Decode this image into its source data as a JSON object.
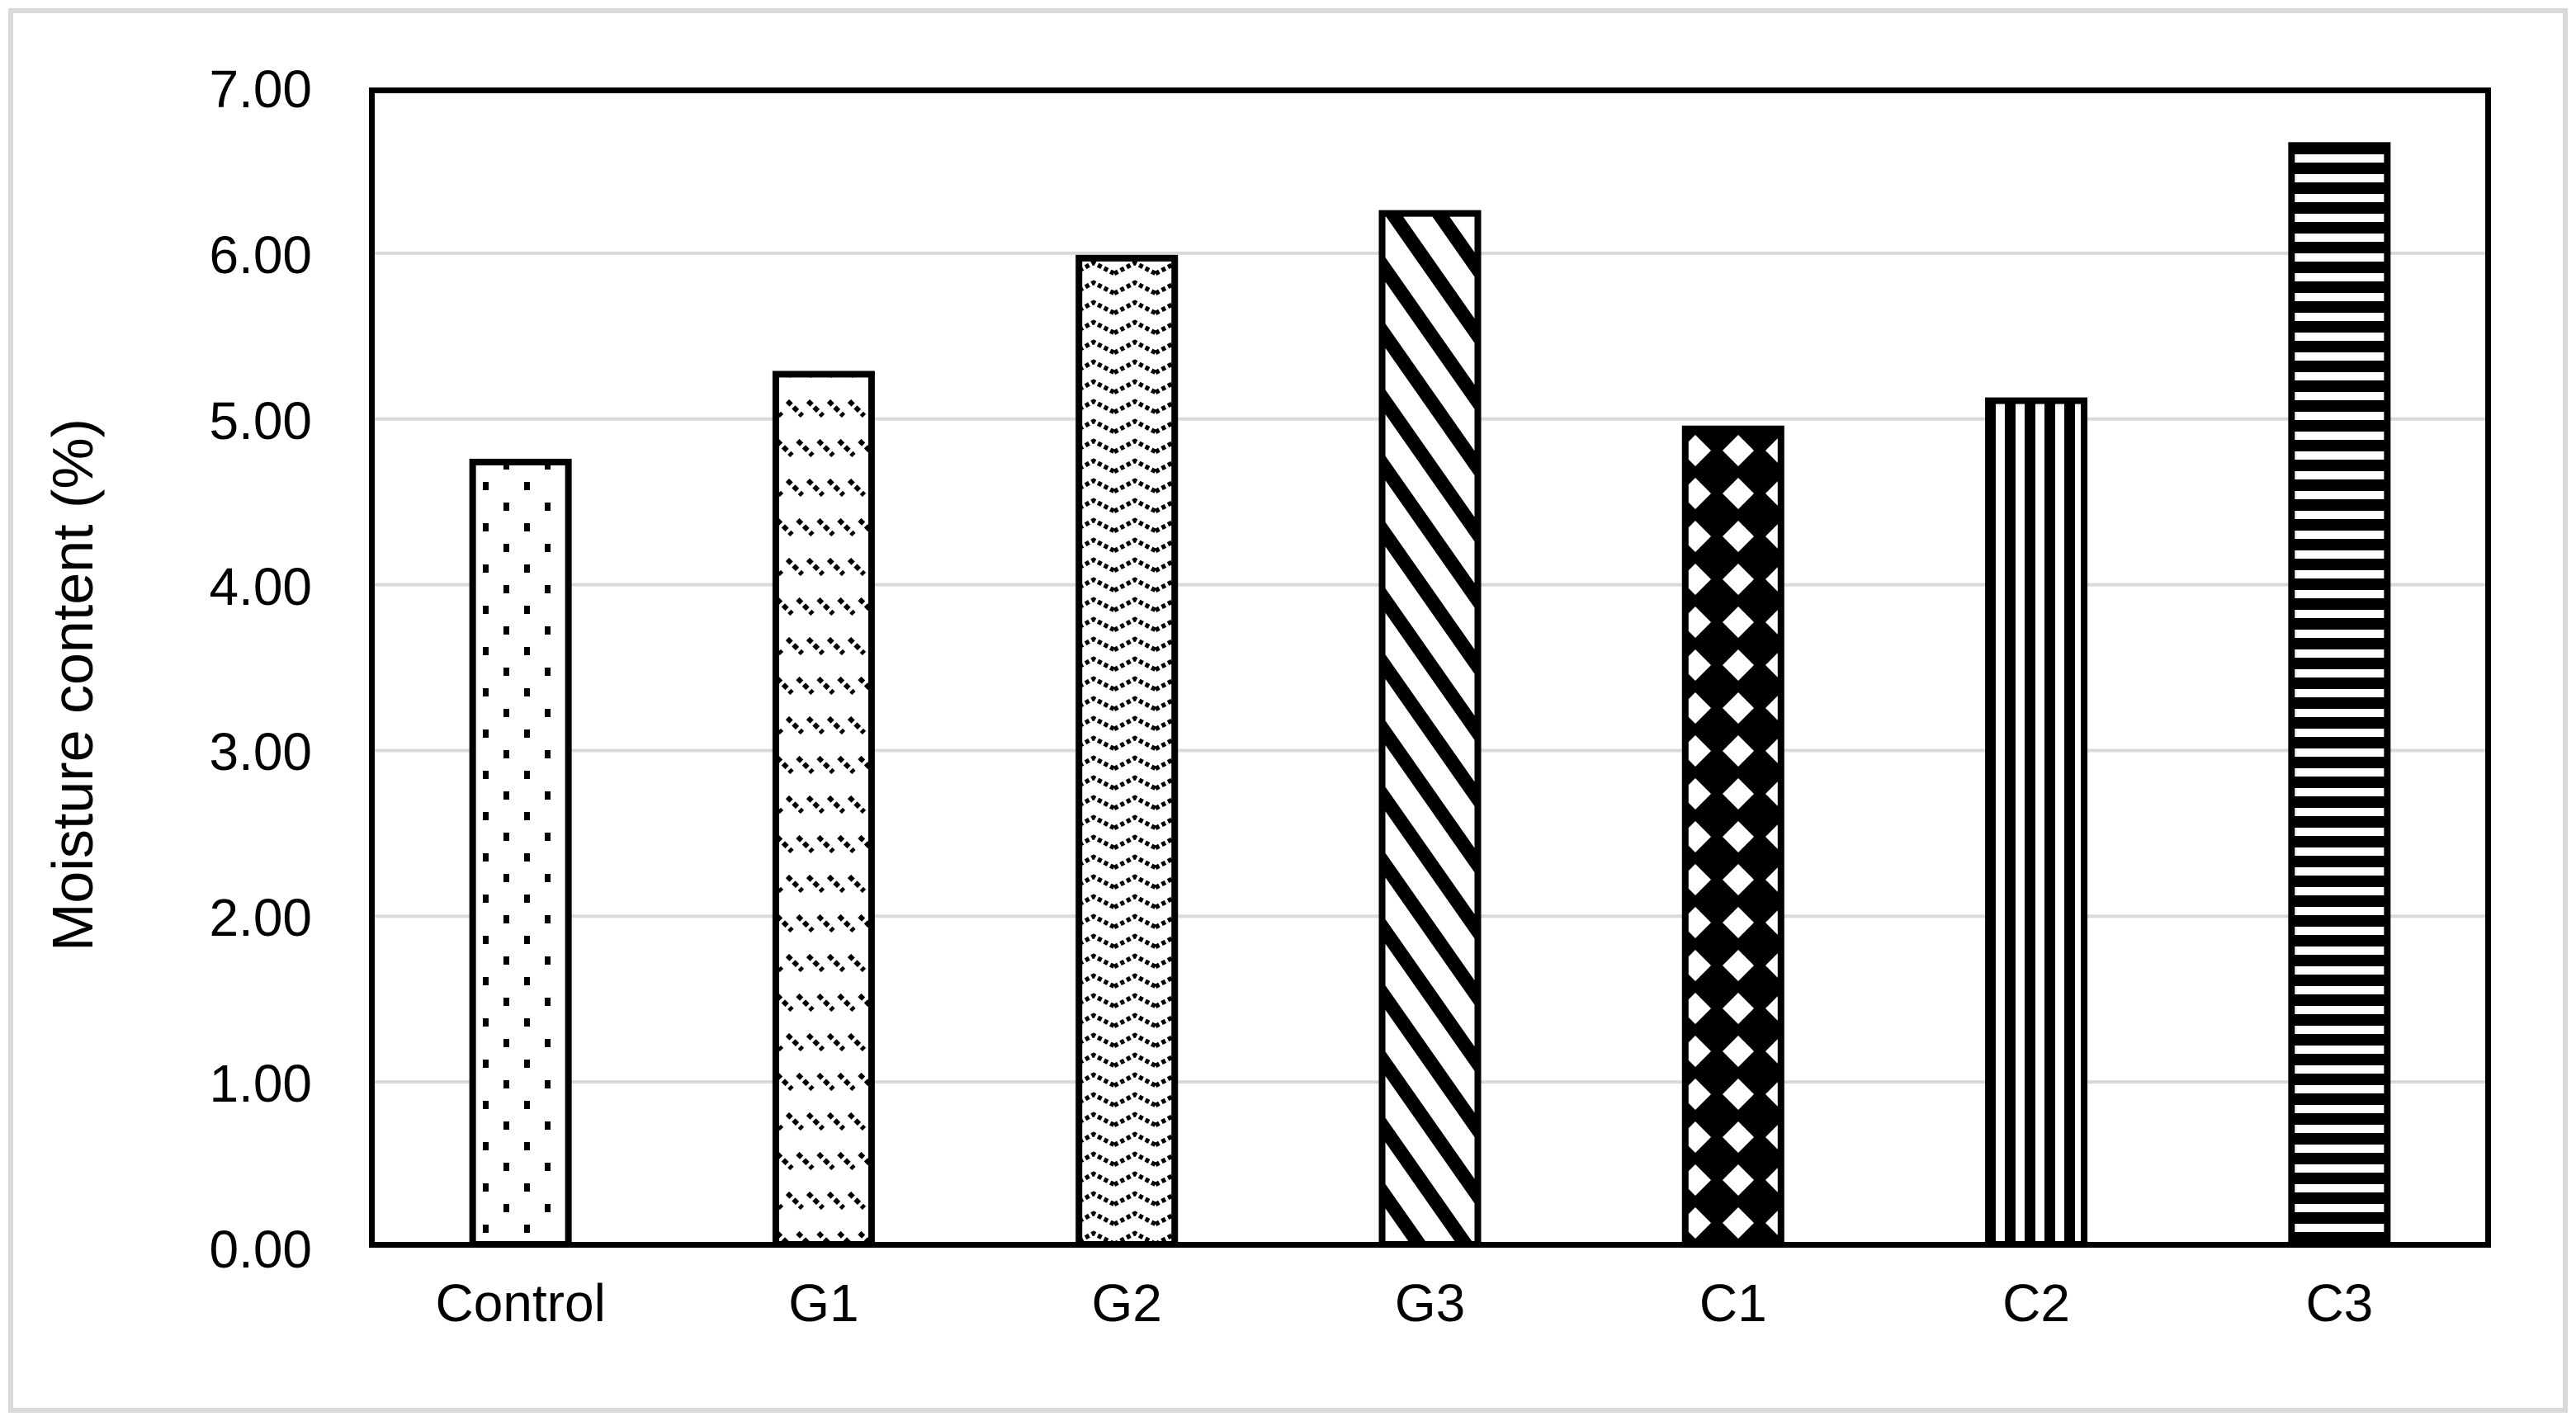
{
  "figure": {
    "background_color": "#ffffff",
    "frame_border_color": "#d9d9d9"
  },
  "chart_data": {
    "type": "bar",
    "title": "",
    "categories": [
      "Control",
      "G1",
      "G2",
      "G3",
      "C1",
      "C2",
      "C3"
    ],
    "values": [
      4.76,
      5.29,
      5.99,
      6.26,
      4.96,
      5.13,
      6.67
    ],
    "bar_fill_patterns": [
      "sparse-dots",
      "dashed-downward-diagonal",
      "zigzag-wave",
      "wide-downward-diagonal",
      "diamond-checker",
      "vertical-stripes",
      "horizontal-stripes"
    ],
    "xlabel": "",
    "ylabel": "Moisture content (%)",
    "ylim": [
      0,
      7
    ],
    "ytick_step": 1,
    "ytick_labels": [
      "0.00",
      "1.00",
      "2.00",
      "3.00",
      "4.00",
      "5.00",
      "6.00",
      "7.00"
    ],
    "grid": true,
    "gridline_color": "#d9d9d9",
    "bar_outline_color": "#000000",
    "legend_position": "none"
  }
}
